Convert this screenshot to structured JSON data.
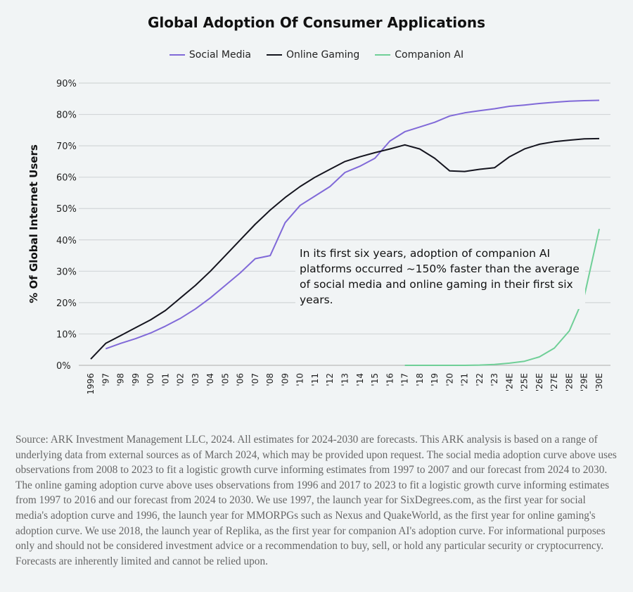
{
  "chart_data": {
    "type": "line",
    "title": "Global Adoption Of Consumer Applications",
    "ylabel": "% Of Global Internet Users",
    "xlabel": "",
    "ylim": [
      0,
      90
    ],
    "yticks": [
      "0%",
      "10%",
      "20%",
      "30%",
      "40%",
      "50%",
      "60%",
      "70%",
      "80%",
      "90%"
    ],
    "grid": true,
    "legend_position": "top-center",
    "categories": [
      "1996",
      "'97",
      "'98",
      "'99",
      "'00",
      "'01",
      "'02",
      "'03",
      "'04",
      "'05",
      "'06",
      "'07",
      "'08",
      "'09",
      "'10",
      "'11",
      "'12",
      "'13",
      "'14",
      "'15",
      "'16",
      "'17",
      "'18",
      "'19",
      "'20",
      "'21",
      "'22",
      "'23",
      "'24E",
      "'25E",
      "'26E",
      "'27E",
      "'28E",
      "'29E",
      "'30E"
    ],
    "series": [
      {
        "name": "Social Media",
        "color": "#8069d8",
        "values": [
          null,
          5.3,
          7,
          8.5,
          10.3,
          12.5,
          15,
          18,
          21.5,
          25.5,
          29.5,
          34,
          35,
          45.5,
          51,
          54,
          57,
          61.5,
          63.5,
          66,
          71.5,
          74.5,
          76,
          77.5,
          79.5,
          80.5,
          81.2,
          81.8,
          82.6,
          83,
          83.5,
          83.9,
          84.2,
          84.4,
          84.5
        ]
      },
      {
        "name": "Online Gaming",
        "color": "#14141e",
        "values": [
          2,
          7,
          9.5,
          12,
          14.5,
          17.5,
          21.5,
          25.5,
          30,
          35,
          40,
          45,
          49.5,
          53.5,
          57,
          60,
          62.5,
          65,
          66.5,
          67.8,
          69,
          70.3,
          69,
          66,
          62,
          61.8,
          62.5,
          63,
          66.5,
          69,
          70.5,
          71.3,
          71.8,
          72.2,
          72.3
        ]
      },
      {
        "name": "Companion AI",
        "color": "#6fcf97",
        "values": [
          null,
          null,
          null,
          null,
          null,
          null,
          null,
          null,
          null,
          null,
          null,
          null,
          null,
          null,
          null,
          null,
          null,
          null,
          null,
          null,
          null,
          0,
          0,
          0,
          0,
          0,
          0.1,
          0.3,
          0.7,
          1.3,
          2.7,
          5.5,
          11,
          22,
          43.5
        ]
      }
    ],
    "annotation": "In its first six years, adoption of companion AI platforms occurred ~150% faster than the average of social media and online gaming in their first six years."
  },
  "source": "Source: ARK Investment Management LLC, 2024. All estimates for 2024-2030 are forecasts. This ARK analysis is based on a range of underlying data from external sources as of March 2024, which may be provided upon request. The social media adoption curve above uses observations from 2008 to 2023 to fit a logistic growth curve informing estimates from 1997 to 2007 and our forecast from 2024 to 2030. The online gaming adoption curve above uses observations from 1996 and 2017 to 2023 to fit a logistic growth curve informing estimates from 1997 to 2016 and our forecast from 2024 to 2030. We use 1997, the launch year for SixDegrees.com, as the first year for social media's adoption curve and 1996, the launch year for MMORPGs such as Nexus and QuakeWorld, as the first year for online gaming's adoption curve. We use 2018, the launch year of Replika, as the first year for companion AI's adoption curve. For informational purposes only and should not be considered investment advice or a recommendation to buy, sell, or hold any particular security or cryptocurrency. Forecasts are inherently limited and cannot be relied upon."
}
